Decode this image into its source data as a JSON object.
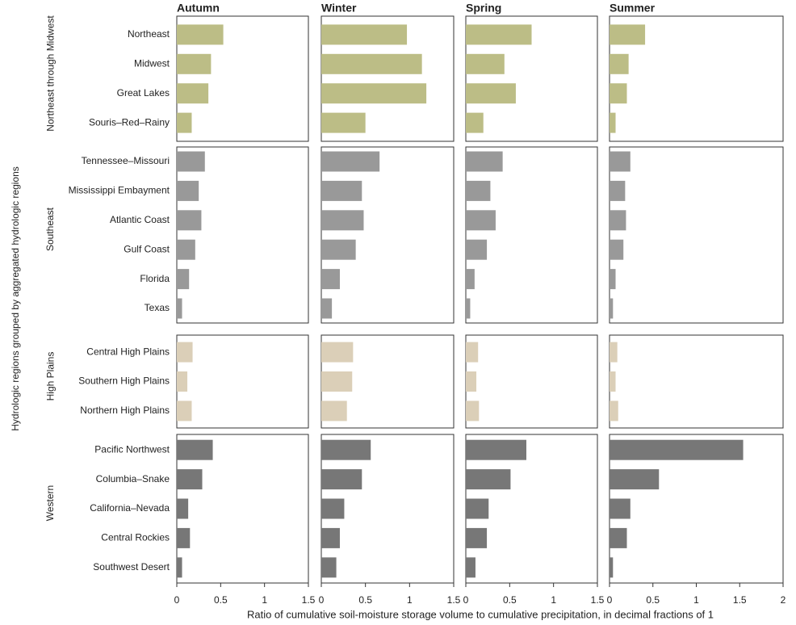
{
  "chart_data": {
    "type": "bar",
    "ylabel": "Hydrologic regions grouped by aggregated hydrologic regions",
    "xlabel": "Ratio of cumulative soil-moisture storage volume to cumulative precipitation, in decimal fractions of 1",
    "groups": [
      {
        "name": "Northeast through Midwest",
        "color": "#bcbd86",
        "categories": [
          "Northeast",
          "Midwest",
          "Great Lakes",
          "Souris–Red–Rainy"
        ]
      },
      {
        "name": "Southeast",
        "color": "#999999",
        "categories": [
          "Tennessee–Missouri",
          "Mississippi Embayment",
          "Atlantic Coast",
          "Gulf Coast",
          "Florida",
          "Texas"
        ]
      },
      {
        "name": "High Plains",
        "color": "#dbcfb8",
        "categories": [
          "Central High Plains",
          "Southern High Plains",
          "Northern High Plains"
        ]
      },
      {
        "name": "Western",
        "color": "#777777",
        "categories": [
          "Pacific Northwest",
          "Columbia–Snake",
          "California–Nevada",
          "Central Rockies",
          "Southwest Desert"
        ]
      }
    ],
    "panels": [
      {
        "title": "Autumn",
        "xlim": [
          0,
          1.5
        ],
        "xticks": [
          0,
          0.5,
          1,
          1.5
        ],
        "values": [
          [
            0.53,
            0.39,
            0.36,
            0.17
          ],
          [
            0.32,
            0.25,
            0.28,
            0.21,
            0.14,
            0.06
          ],
          [
            0.18,
            0.12,
            0.17
          ],
          [
            0.41,
            0.29,
            0.13,
            0.15,
            0.06
          ]
        ]
      },
      {
        "title": "Winter",
        "xlim": [
          0,
          1.5
        ],
        "xticks": [
          0,
          0.5,
          1,
          1.5
        ],
        "values": [
          [
            0.97,
            1.14,
            1.19,
            0.5
          ],
          [
            0.66,
            0.46,
            0.48,
            0.39,
            0.21,
            0.12
          ],
          [
            0.36,
            0.35,
            0.29
          ],
          [
            0.56,
            0.46,
            0.26,
            0.21,
            0.17
          ]
        ]
      },
      {
        "title": "Spring",
        "xlim": [
          0,
          1.5
        ],
        "xticks": [
          0,
          0.5,
          1,
          1.5
        ],
        "values": [
          [
            0.75,
            0.44,
            0.57,
            0.2
          ],
          [
            0.42,
            0.28,
            0.34,
            0.24,
            0.1,
            0.05
          ],
          [
            0.14,
            0.12,
            0.15
          ],
          [
            0.69,
            0.51,
            0.26,
            0.24,
            0.11
          ]
        ]
      },
      {
        "title": "Summer",
        "xlim": [
          0,
          2
        ],
        "xticks": [
          0,
          0.5,
          1,
          1.5,
          2
        ],
        "values": [
          [
            0.41,
            0.22,
            0.2,
            0.07
          ],
          [
            0.24,
            0.18,
            0.19,
            0.16,
            0.07,
            0.04
          ],
          [
            0.09,
            0.07,
            0.1
          ],
          [
            1.54,
            0.57,
            0.24,
            0.2,
            0.04
          ]
        ]
      }
    ]
  }
}
